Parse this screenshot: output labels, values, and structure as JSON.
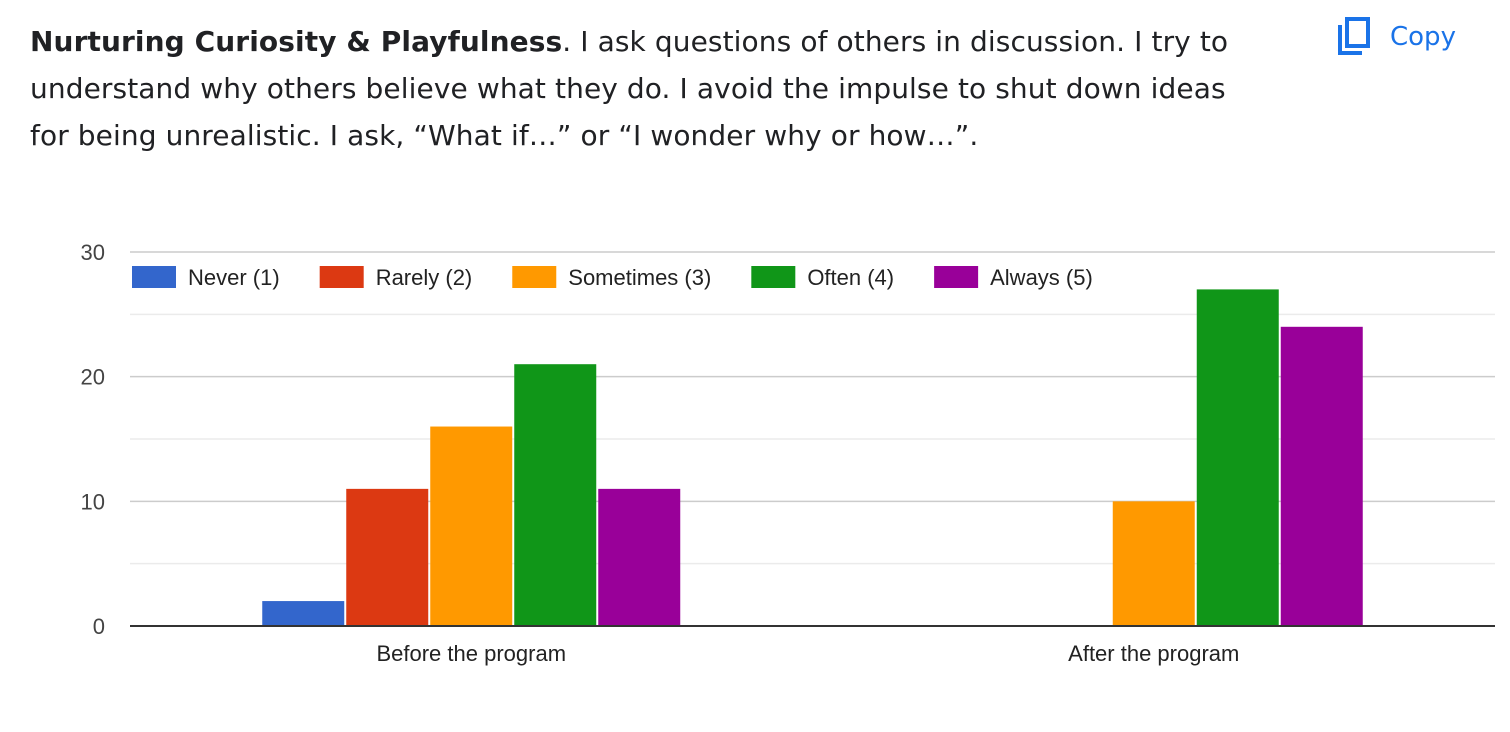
{
  "question": {
    "title_bold": "Nurturing Curiosity & Playfulness",
    "text": ". I ask questions of others in discussion. I try to understand why others believe what they do. I avoid the impulse to shut down ideas for being unrealistic. I ask, “What if…” or “I wonder why or how…”."
  },
  "copy_button": {
    "label": "Copy",
    "icon": "copy-icon",
    "color": "#1a73e8"
  },
  "chart_data": {
    "type": "bar",
    "categories": [
      "Before the program",
      "After the program"
    ],
    "series": [
      {
        "name": "Never (1)",
        "color": "#3366cc",
        "values": [
          2,
          0
        ]
      },
      {
        "name": "Rarely (2)",
        "color": "#dc3912",
        "values": [
          11,
          0
        ]
      },
      {
        "name": "Sometimes (3)",
        "color": "#ff9900",
        "values": [
          16,
          10
        ]
      },
      {
        "name": "Often (4)",
        "color": "#109618",
        "values": [
          21,
          27
        ]
      },
      {
        "name": "Always (5)",
        "color": "#990099",
        "values": [
          11,
          24
        ]
      }
    ],
    "y_ticks": [
      0,
      10,
      20,
      30
    ],
    "ylim": [
      0,
      30
    ],
    "grid": true,
    "legend_position": "top-left",
    "title": "",
    "xlabel": "",
    "ylabel": ""
  }
}
